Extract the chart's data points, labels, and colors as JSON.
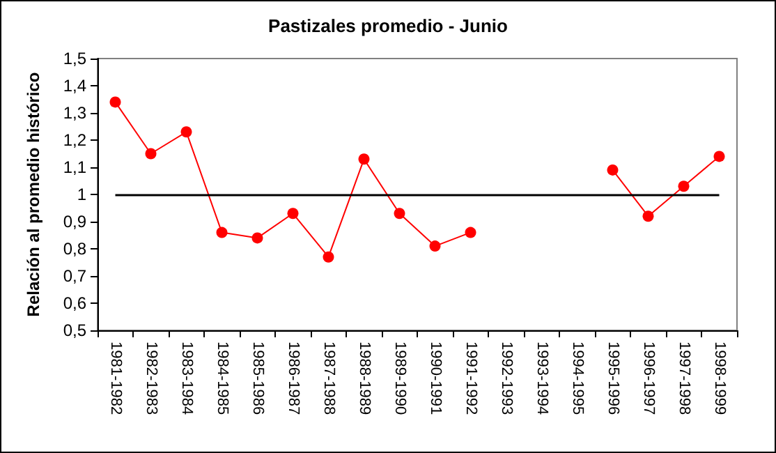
{
  "chart_data": {
    "type": "line",
    "title": "Pastizales promedio - Junio",
    "ylabel": "Relación al promedio histórico",
    "categories": [
      "1981-1982",
      "1982-1983",
      "1983-1984",
      "1984-1985",
      "1985-1986",
      "1986-1987",
      "1987-1988",
      "1988-1989",
      "1989-1990",
      "1990-1991",
      "1991-1992",
      "1992-1993",
      "1993-1994",
      "1994-1995",
      "1995-1996",
      "1996-1997",
      "1997-1998",
      "1998-1999"
    ],
    "series": [
      {
        "color": "#ff0000",
        "values": [
          1.34,
          1.15,
          1.23,
          0.86,
          0.84,
          0.93,
          0.77,
          1.13,
          0.93,
          0.81,
          0.86,
          null,
          null,
          null,
          1.09,
          0.92,
          1.03,
          1.14
        ]
      }
    ],
    "ylim": [
      0.5,
      1.5
    ],
    "yticks": [
      {
        "value": 0.5,
        "label": "0,5"
      },
      {
        "value": 0.6,
        "label": "0,6"
      },
      {
        "value": 0.7,
        "label": "0,7"
      },
      {
        "value": 0.8,
        "label": "0,8"
      },
      {
        "value": 0.9,
        "label": "0,9"
      },
      {
        "value": 1,
        "label": "1"
      },
      {
        "value": 1.1,
        "label": "1,1"
      },
      {
        "value": 1.2,
        "label": "1,2"
      },
      {
        "value": 1.3,
        "label": "1,3"
      },
      {
        "value": 1.4,
        "label": "1,4"
      },
      {
        "value": 1.5,
        "label": "1,5"
      }
    ],
    "ref_lines": [
      {
        "axis": "y",
        "value": 1,
        "color": "#000000"
      }
    ],
    "grid": false,
    "marker": "circle",
    "line_style": "solid"
  }
}
